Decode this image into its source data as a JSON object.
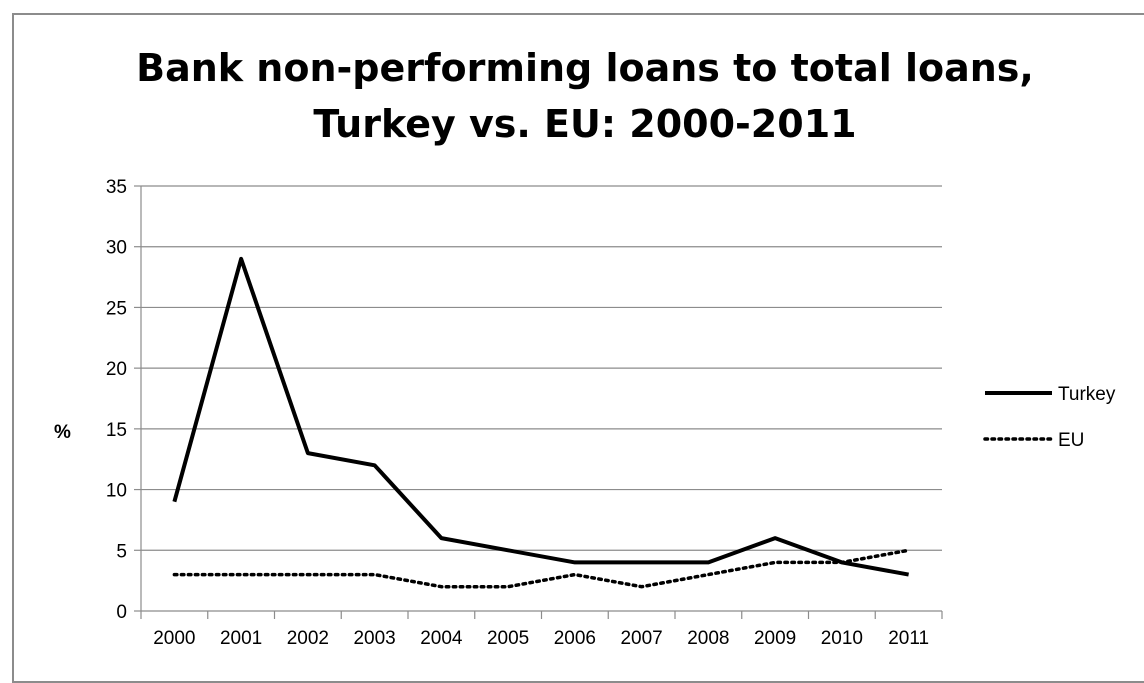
{
  "chart_data": {
    "type": "line",
    "title": "Bank non-performing loans to total loans,\nTurkey vs. EU: 2000-2011",
    "xlabel": "",
    "ylabel": "%",
    "categories": [
      "2000",
      "2001",
      "2002",
      "2003",
      "2004",
      "2005",
      "2006",
      "2007",
      "2008",
      "2009",
      "2010",
      "2011"
    ],
    "ylim": [
      0,
      35
    ],
    "yticks": [
      0,
      5,
      10,
      15,
      20,
      25,
      30,
      35
    ],
    "grid": "horizontal",
    "legend_position": "right",
    "series": [
      {
        "name": "Turkey",
        "style": "solid",
        "color": "#000000",
        "values": [
          9,
          29,
          13,
          12,
          6,
          5,
          4,
          4,
          4,
          6,
          4,
          3
        ]
      },
      {
        "name": "EU",
        "style": "dotted",
        "color": "#000000",
        "values": [
          3,
          3,
          3,
          3,
          2,
          2,
          3,
          2,
          3,
          4,
          4,
          5
        ]
      }
    ]
  }
}
